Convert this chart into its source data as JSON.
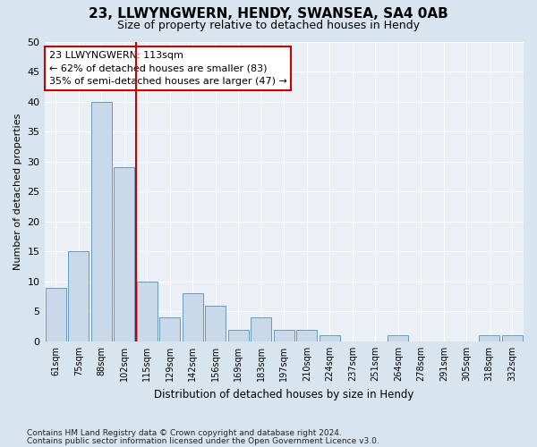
{
  "title": "23, LLWYNGWERN, HENDY, SWANSEA, SA4 0AB",
  "subtitle": "Size of property relative to detached houses in Hendy",
  "xlabel": "Distribution of detached houses by size in Hendy",
  "ylabel": "Number of detached properties",
  "categories": [
    "61sqm",
    "75sqm",
    "88sqm",
    "102sqm",
    "115sqm",
    "129sqm",
    "142sqm",
    "156sqm",
    "169sqm",
    "183sqm",
    "197sqm",
    "210sqm",
    "224sqm",
    "237sqm",
    "251sqm",
    "264sqm",
    "278sqm",
    "291sqm",
    "305sqm",
    "318sqm",
    "332sqm"
  ],
  "values": [
    9,
    15,
    40,
    29,
    10,
    4,
    8,
    6,
    2,
    4,
    2,
    2,
    1,
    0,
    0,
    1,
    0,
    0,
    0,
    1,
    1
  ],
  "bar_color": "#c9d9e9",
  "bar_edge_color": "#6699bb",
  "property_line_x": 3.5,
  "property_line_color": "#cc0000",
  "annotation_text": "23 LLWYNGWERN: 113sqm\n← 62% of detached houses are smaller (83)\n35% of semi-detached houses are larger (47) →",
  "annotation_box_color": "#ffffff",
  "annotation_box_edge_color": "#cc0000",
  "ylim": [
    0,
    50
  ],
  "yticks": [
    0,
    5,
    10,
    15,
    20,
    25,
    30,
    35,
    40,
    45,
    50
  ],
  "footer_line1": "Contains HM Land Registry data © Crown copyright and database right 2024.",
  "footer_line2": "Contains public sector information licensed under the Open Government Licence v3.0.",
  "background_color": "#d8e4ee",
  "plot_bg_color": "#eaf0f6",
  "grid_color": "#ffffff"
}
